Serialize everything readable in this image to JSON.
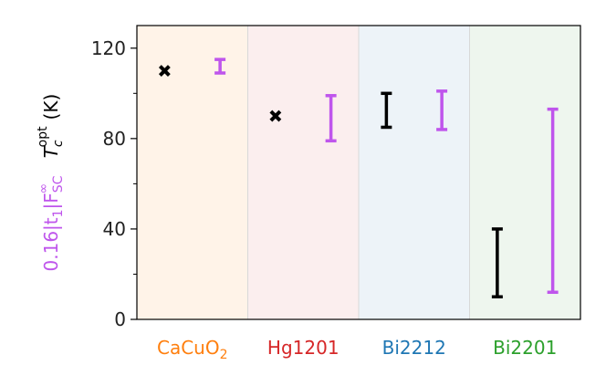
{
  "chart_data": {
    "type": "scatter",
    "ylim": [
      0,
      130
    ],
    "yticks": [
      0,
      40,
      80,
      120
    ],
    "grid": false,
    "categories": [
      {
        "name": "CaCuO",
        "sub": "2",
        "color": "#ff7f0e",
        "band": "#fff3e8"
      },
      {
        "name": "Hg1201",
        "sub": "",
        "color": "#d62728",
        "band": "#fbeeee"
      },
      {
        "name": "Bi2212",
        "sub": "",
        "color": "#1f77b4",
        "band": "#edf3f8"
      },
      {
        "name": "Bi2201",
        "sub": "",
        "color": "#2ca02c",
        "band": "#eef6ee"
      }
    ],
    "series": [
      {
        "label_parts": [
          "T",
          "c",
          "opt",
          "(K)"
        ],
        "color": "#000000",
        "points": [
          {
            "category": "CaCuO2",
            "kind": "marker",
            "y": 110
          },
          {
            "category": "Hg1201",
            "kind": "marker",
            "y": 90
          },
          {
            "category": "Bi2212",
            "kind": "range",
            "low": 85,
            "high": 100
          },
          {
            "category": "Bi2201",
            "kind": "range",
            "low": 10,
            "high": 40
          }
        ]
      },
      {
        "label_parts": [
          "0.16|t",
          "1",
          "|F",
          "SC",
          "∞"
        ],
        "color": "#bf55ec",
        "points": [
          {
            "category": "CaCuO2",
            "kind": "range",
            "low": 109,
            "high": 115
          },
          {
            "category": "Hg1201",
            "kind": "range",
            "low": 79,
            "high": 99
          },
          {
            "category": "Bi2212",
            "kind": "range",
            "low": 84,
            "high": 101
          },
          {
            "category": "Bi2201",
            "kind": "range",
            "low": 12,
            "high": 93
          }
        ]
      }
    ]
  }
}
